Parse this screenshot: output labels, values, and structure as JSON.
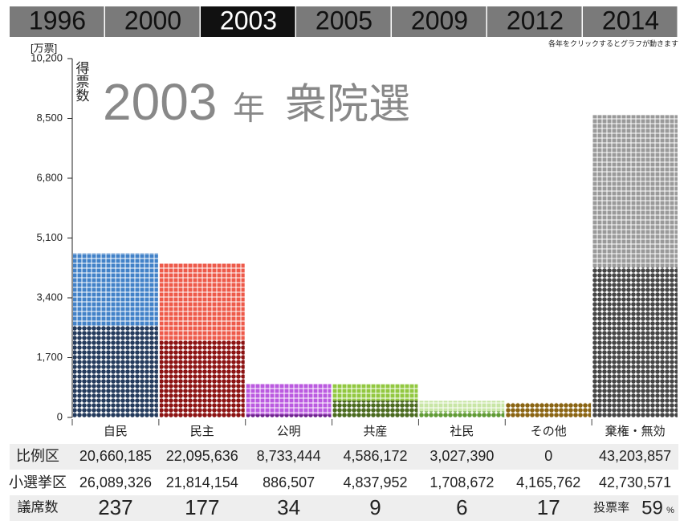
{
  "tabs": [
    "1996",
    "2000",
    "2003",
    "2005",
    "2009",
    "2012",
    "2014"
  ],
  "active_tab": "2003",
  "hint": "各年をクリックするとグラフが動きます",
  "chart_data": {
    "type": "stacked_waffle_bar",
    "title_year": "2003",
    "title_unit": "年",
    "title_name": "衆院選",
    "y_unit": "[万票]",
    "y_label": "得票数",
    "categories": [
      "自民",
      "民主",
      "公明",
      "共産",
      "社民",
      "その他",
      "棄権・無効"
    ],
    "ylim": [
      0,
      10200
    ],
    "yticks": [
      0,
      {
        "value": 1700,
        "label": "1,700"
      },
      {
        "value": 3400,
        "label": "3,400"
      },
      {
        "value": 5100,
        "label": "5,100"
      },
      {
        "value": 6800,
        "label": "6,800"
      },
      {
        "value": 8500,
        "label": "8,500"
      },
      {
        "value": 10200,
        "label": "10,200"
      }
    ],
    "series": [
      {
        "name": "小選挙区",
        "marker": "dot",
        "colors": [
          "#233a5c",
          "#8c1212",
          "#6e1f8e",
          "#4a6a1e",
          "#5f9a33",
          "#8a6412",
          "#444444"
        ],
        "values": [
          2608.9326,
          2181.4154,
          88.6507,
          483.7952,
          170.8672,
          416.5762,
          4273.0571
        ],
        "value_labels": [
          "26,089,326",
          "21,814,154",
          "886,507",
          "4,837,952",
          "1,708,672",
          "4,165,762",
          "42,730,571"
        ]
      },
      {
        "name": "比例区",
        "marker": "square",
        "colors": [
          "#4282c8",
          "#ee5a4a",
          "#bb5ae0",
          "#92c840",
          "#c8e6a6",
          "#b0801e",
          "#9a9a9a"
        ],
        "values": [
          2066.0185,
          2209.5636,
          873.3444,
          458.6172,
          302.739,
          0,
          4320.3857
        ],
        "value_labels": [
          "20,660,185",
          "22,095,636",
          "8,733,444",
          "4,586,172",
          "3,027,390",
          "0",
          "43,203,857"
        ]
      }
    ],
    "seats_label": "議席数",
    "seats": [
      237,
      177,
      34,
      9,
      6,
      17
    ],
    "turnout_label": "投票率",
    "turnout": 59,
    "turnout_unit": "%"
  }
}
